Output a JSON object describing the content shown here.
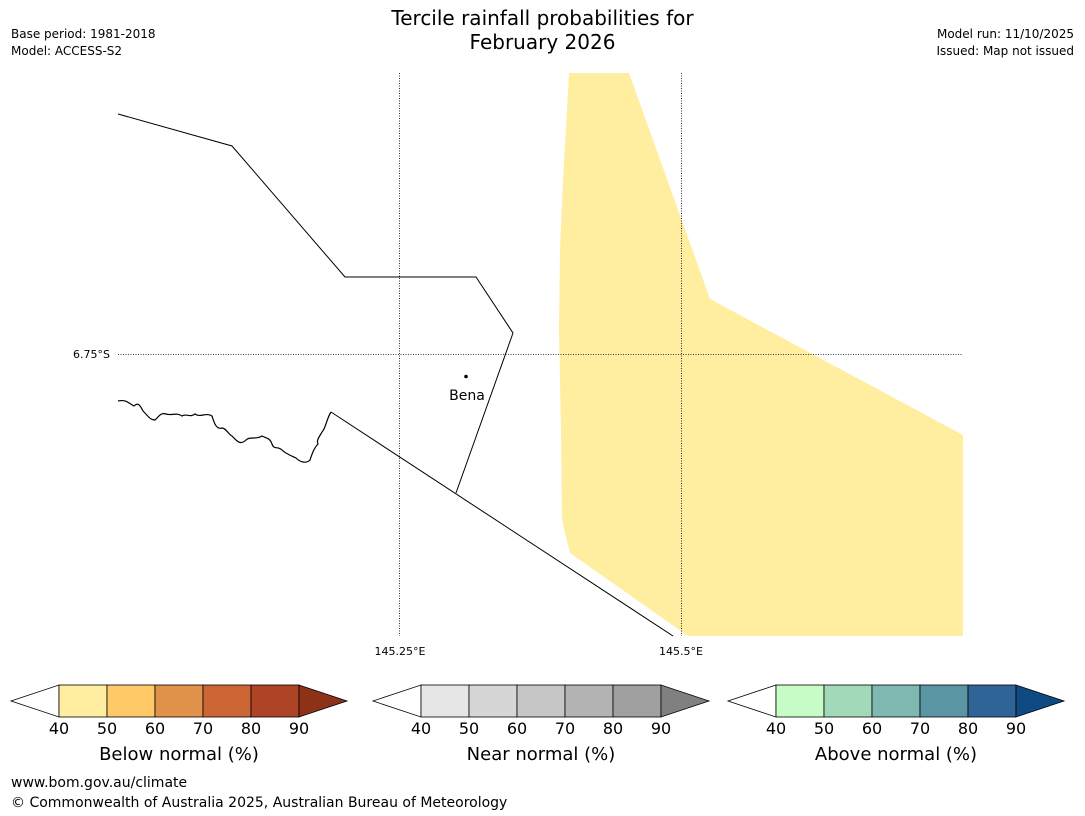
{
  "header": {
    "title_line1": "Tercile rainfall probabilities for",
    "title_line2": "February 2026",
    "base_period": "Base period: 1981-2018",
    "model": "Model: ACCESS-S2",
    "model_run": "Model run: 11/10/2025",
    "issued": "Issued: Map not issued"
  },
  "map": {
    "lat_label": "6.75°S",
    "lon_labels": [
      "145.25°E",
      "145.5°E"
    ],
    "place_name": "Bena",
    "shade_color": "#ffeda0"
  },
  "colorbars": [
    {
      "label": "Below normal (%)",
      "ticks": [
        "40",
        "50",
        "60",
        "70",
        "80",
        "90"
      ],
      "colors": [
        "#ffeda0",
        "#fec966",
        "#e0924a",
        "#cc6634",
        "#ae4426"
      ],
      "arrow_color": "#8e3119"
    },
    {
      "label": "Near normal (%)",
      "ticks": [
        "40",
        "50",
        "60",
        "70",
        "80",
        "90"
      ],
      "colors": [
        "#e6e6e6",
        "#d6d6d6",
        "#c6c6c6",
        "#b3b3b3",
        "#a0a0a0"
      ],
      "arrow_color": "#808080"
    },
    {
      "label": "Above normal (%)",
      "ticks": [
        "40",
        "50",
        "60",
        "70",
        "80",
        "90"
      ],
      "colors": [
        "#c7fcc7",
        "#a2d9b9",
        "#7fb8b0",
        "#5a95a3",
        "#2f6496"
      ],
      "arrow_color": "#0f4a82"
    }
  ],
  "footer": {
    "url": "www.bom.gov.au/climate",
    "copyright": "© Commonwealth of Australia 2025, Australian Bureau of Meteorology"
  }
}
